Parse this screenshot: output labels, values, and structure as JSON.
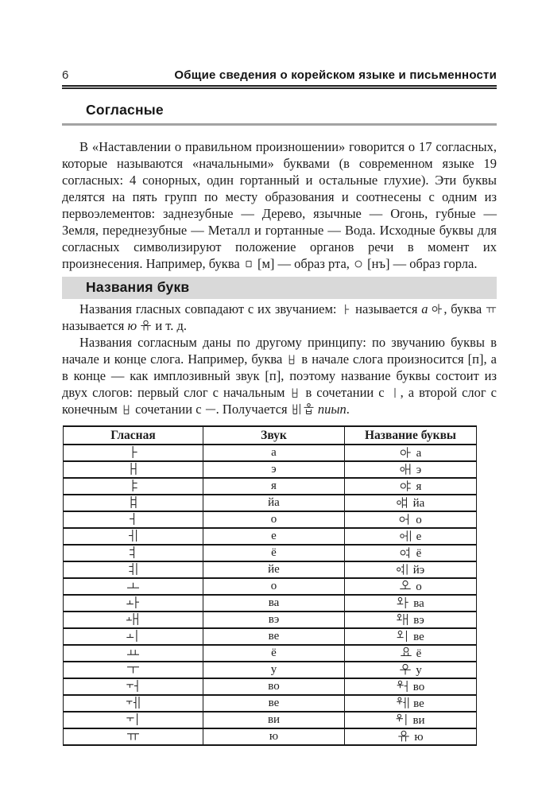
{
  "page": {
    "number": "6",
    "header_title": "Общие сведения о корейском языке и письменности"
  },
  "sections": {
    "consonants_heading": "Согласные",
    "names_heading": "Названия букв"
  },
  "paragraphs": {
    "p1": [
      {
        "t": "В «Наставлении о правильном произношении» говорится о 17 согласных, которые называются «начальными» буквами (в современном языке 19 согласных: 4 сонорных, один гортанный и остальные глухие). Эти буквы делятся на пять групп по месту образования и соотнесены с одним из первоэлементов: заднезубные — Дерево, язычные — Огонь, губные — Земля, переднезубные — Металл и гортанные — Вода. Исходные буквы для согласных символизируют положение органов речи в момент их произнесения. Например, буква "
      },
      {
        "k": "ㅁ"
      },
      {
        "t": " [м] — образ рта, "
      },
      {
        "k": "ㅇ"
      },
      {
        "t": " [нъ] — образ горла."
      }
    ],
    "p2": [
      {
        "t": "Названия гласных совпадают с их звучанием: "
      },
      {
        "k": "ㅏ"
      },
      {
        "t": " называется "
      },
      {
        "t": "а",
        "i": true
      },
      {
        "t": " "
      },
      {
        "k": "아",
        "s": 15
      },
      {
        "t": ", буква "
      },
      {
        "k": "ㅠ"
      },
      {
        "t": " называется "
      },
      {
        "t": "ю",
        "i": true
      },
      {
        "t": " "
      },
      {
        "k": "유",
        "s": 15
      },
      {
        "t": " и т. д."
      }
    ],
    "p3": [
      {
        "t": "Названия согласным даны по другому принципу: по звучанию буквы в начале и конце слога. Например, буква "
      },
      {
        "k": "ㅂ"
      },
      {
        "t": " в начале слога произносится [п], а в конце — как имплозивный звук [п], поэтому название буквы состоит из двух слогов: первый слог с начальным "
      },
      {
        "k": "ㅂ"
      },
      {
        "t": " в сочетании с "
      },
      {
        "k": "ㅣ"
      },
      {
        "t": ", а второй слог с конечным "
      },
      {
        "k": "ㅂ"
      },
      {
        "t": " сочетании с "
      },
      {
        "k": "ㅡ"
      },
      {
        "t": ". Получается "
      },
      {
        "k": "비",
        "s": 15
      },
      {
        "k": "읍",
        "s": 15
      },
      {
        "t": " "
      },
      {
        "t": "пиып",
        "i": true
      },
      {
        "t": "."
      }
    ]
  },
  "table": {
    "columns": [
      "Гласная",
      "Звук",
      "Название буквы"
    ],
    "rows": [
      {
        "vowel": "ㅏ",
        "sound": "а",
        "name_kr": "아",
        "name_ru": "а"
      },
      {
        "vowel": "ㅐ",
        "sound": "э",
        "name_kr": "애",
        "name_ru": "э"
      },
      {
        "vowel": "ㅑ",
        "sound": "я",
        "name_kr": "야",
        "name_ru": "я"
      },
      {
        "vowel": "ㅒ",
        "sound": "йа",
        "name_kr": "얘",
        "name_ru": "йа"
      },
      {
        "vowel": "ㅓ",
        "sound": "о",
        "name_kr": "어",
        "name_ru": "о"
      },
      {
        "vowel": "ㅔ",
        "sound": "е",
        "name_kr": "에",
        "name_ru": "е"
      },
      {
        "vowel": "ㅕ",
        "sound": "ё",
        "name_kr": "여",
        "name_ru": "ё"
      },
      {
        "vowel": "ㅖ",
        "sound": "йе",
        "name_kr": "예",
        "name_ru": "йэ"
      },
      {
        "vowel": "ㅗ",
        "sound": "о",
        "name_kr": "오",
        "name_ru": "о"
      },
      {
        "vowel": "ㅘ",
        "sound": "ва",
        "name_kr": "와",
        "name_ru": "ва"
      },
      {
        "vowel": "ㅙ",
        "sound": "вэ",
        "name_kr": "왜",
        "name_ru": "вэ"
      },
      {
        "vowel": "ㅚ",
        "sound": "ве",
        "name_kr": "외",
        "name_ru": "ве"
      },
      {
        "vowel": "ㅛ",
        "sound": "ё",
        "name_kr": "요",
        "name_ru": "ё"
      },
      {
        "vowel": "ㅜ",
        "sound": "у",
        "name_kr": "우",
        "name_ru": "у"
      },
      {
        "vowel": "ㅝ",
        "sound": "во",
        "name_kr": "워",
        "name_ru": "во"
      },
      {
        "vowel": "ㅞ",
        "sound": "ве",
        "name_kr": "웨",
        "name_ru": "ве"
      },
      {
        "vowel": "ㅟ",
        "sound": "ви",
        "name_kr": "위",
        "name_ru": "ви"
      },
      {
        "vowel": "ㅠ",
        "sound": "ю",
        "name_kr": "유",
        "name_ru": "ю"
      }
    ]
  }
}
